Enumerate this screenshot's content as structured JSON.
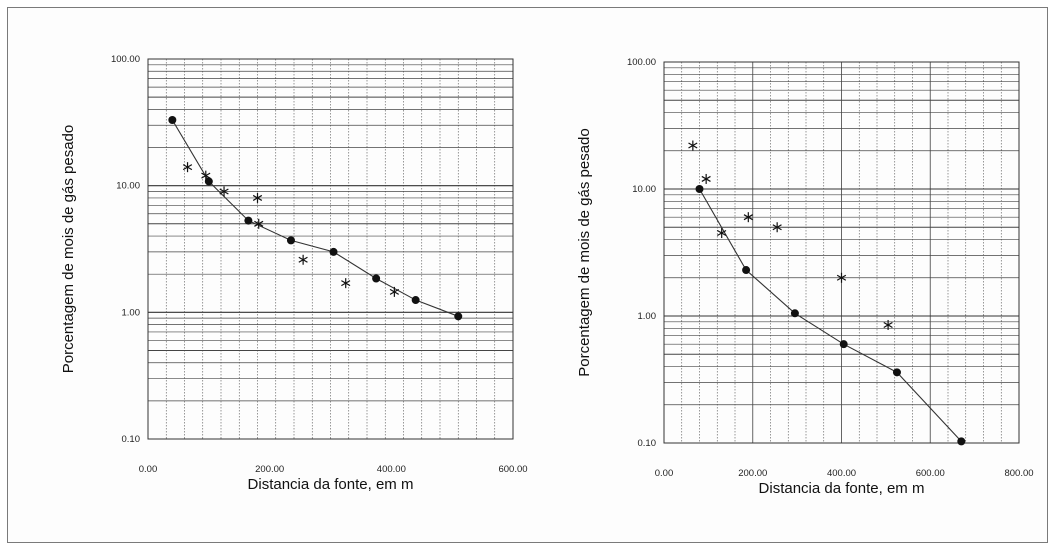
{
  "colors": {
    "ink": "#111111",
    "grid": "#444444",
    "line": "#333333"
  },
  "chart_data": [
    {
      "type": "scatter",
      "xlabel": "Distancia da fonte, em m",
      "ylabel": "Porcentagem de mois de gás pesado",
      "xlim": [
        0,
        600
      ],
      "ylim": [
        0.1,
        100
      ],
      "y_scale": "log",
      "grid": true,
      "x_ticks": [
        "0.00",
        "200.00",
        "400.00",
        "600.00"
      ],
      "y_ticks": [
        "0.10",
        "1.00",
        "10.00",
        "100.00"
      ],
      "series": [
        {
          "marker": "circle",
          "connected": true,
          "x": [
            40,
            100,
            165,
            235,
            305,
            375,
            440,
            510
          ],
          "y": [
            33,
            10.8,
            5.3,
            3.7,
            3.0,
            1.85,
            1.25,
            0.93
          ]
        },
        {
          "marker": "asterisk",
          "connected": false,
          "x": [
            65,
            95,
            125,
            180,
            182,
            255,
            325,
            405
          ],
          "y": [
            14,
            12,
            9,
            8,
            5,
            2.6,
            1.7,
            1.45
          ]
        }
      ]
    },
    {
      "type": "scatter",
      "xlabel": "Distancia da fonte, em m",
      "ylabel": "Porcentagem de mois de gás pesado",
      "xlim": [
        0,
        800
      ],
      "ylim": [
        0.1,
        100
      ],
      "y_scale": "log",
      "grid": true,
      "x_ticks": [
        "0.00",
        "200.00",
        "400.00",
        "600.00",
        "800.00"
      ],
      "y_ticks": [
        "0.10",
        "1.00",
        "10.00",
        "100.00"
      ],
      "series": [
        {
          "marker": "circle",
          "connected": true,
          "x": [
            80,
            185,
            295,
            405,
            525,
            670
          ],
          "y": [
            10,
            2.3,
            1.05,
            0.6,
            0.36,
            0.103
          ]
        },
        {
          "marker": "asterisk",
          "connected": false,
          "x": [
            65,
            95,
            130,
            190,
            255,
            400,
            505
          ],
          "y": [
            22,
            12,
            4.5,
            6,
            5,
            2.0,
            0.85
          ]
        }
      ]
    }
  ]
}
